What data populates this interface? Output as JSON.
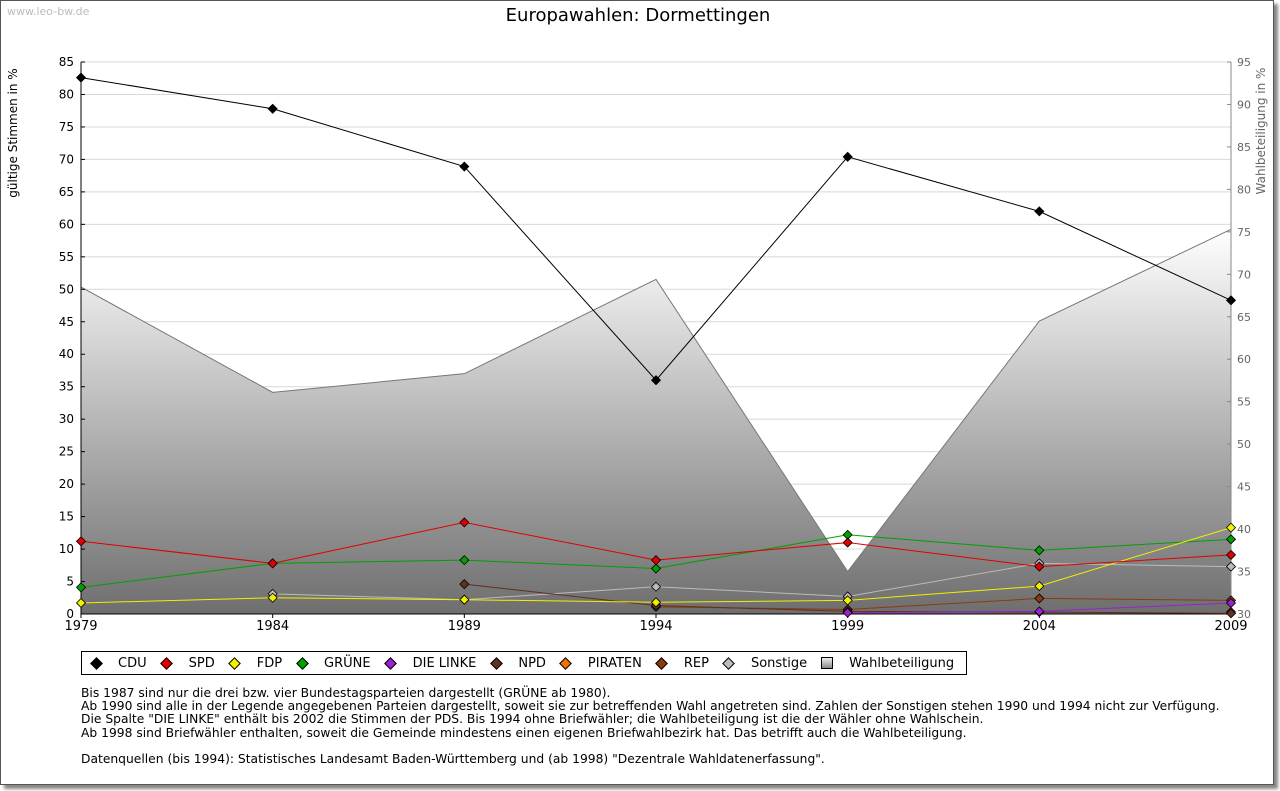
{
  "watermark": "www.leo-bw.de",
  "chart_data": {
    "type": "line",
    "title": "Europawahlen: Dormettingen",
    "ylabel": "gültige Stimmen in %",
    "y2label": "Wahlbeteiligung in %",
    "x": [
      "1979",
      "1984",
      "1989",
      "1994",
      "1999",
      "2004",
      "2009"
    ],
    "ylim": [
      0,
      85
    ],
    "y2lim": [
      30,
      95
    ],
    "yticks": [
      0,
      5,
      10,
      15,
      20,
      25,
      30,
      35,
      40,
      45,
      50,
      55,
      60,
      65,
      70,
      75,
      80,
      85
    ],
    "y2ticks": [
      30,
      35,
      40,
      45,
      50,
      55,
      60,
      65,
      70,
      75,
      80,
      85,
      90,
      95
    ],
    "grid": true,
    "series": [
      {
        "name": "CDU",
        "color": "#000000",
        "values": [
          82.6,
          77.8,
          68.9,
          36.0,
          70.4,
          62.0,
          48.3
        ]
      },
      {
        "name": "SPD",
        "color": "#e00000",
        "values": [
          11.2,
          7.8,
          14.1,
          8.3,
          11.0,
          7.3,
          9.1
        ]
      },
      {
        "name": "FDP",
        "color": "#f0f000",
        "values": [
          1.7,
          2.5,
          2.2,
          1.8,
          2.1,
          4.3,
          13.3
        ]
      },
      {
        "name": "GRÜNE",
        "color": "#00a000",
        "values": [
          4.1,
          7.8,
          8.3,
          7.0,
          12.2,
          9.8,
          11.5
        ]
      },
      {
        "name": "DIE LINKE",
        "color": "#9a20d0",
        "values": [
          null,
          null,
          null,
          null,
          0.2,
          0.4,
          1.7
        ]
      },
      {
        "name": "NPD",
        "color": "#603020",
        "values": [
          null,
          null,
          4.6,
          1.3,
          0.4,
          0.3,
          0.1
        ]
      },
      {
        "name": "PIRATEN",
        "color": "#f07000",
        "values": [
          null,
          null,
          null,
          null,
          null,
          null,
          0.3
        ]
      },
      {
        "name": "REP",
        "color": "#8b3a10",
        "values": [
          null,
          null,
          null,
          1.1,
          0.7,
          2.4,
          2.1
        ]
      },
      {
        "name": "Sonstige",
        "color": "#bbbbbb",
        "values": [
          null,
          3.1,
          2.2,
          4.2,
          2.7,
          7.8,
          7.3
        ]
      }
    ],
    "turnout": {
      "name": "Wahlbeteiligung",
      "values": [
        68.5,
        56.1,
        58.3,
        69.4,
        35.0,
        64.5,
        75.3
      ]
    },
    "legend": [
      "CDU",
      "SPD",
      "FDP",
      "GRÜNE",
      "DIE LINKE",
      "NPD",
      "PIRATEN",
      "REP",
      "Sonstige",
      "Wahlbeteiligung"
    ]
  },
  "notes": [
    "Bis 1987 sind nur die drei bzw. vier Bundestagsparteien dargestellt (GRÜNE ab 1980).",
    "Ab 1990 sind alle in der Legende angegebenen Parteien dargestellt, soweit sie zur betreffenden Wahl angetreten sind. Zahlen der Sonstigen stehen 1990 und 1994 nicht zur Verfügung.",
    "Die Spalte \"DIE LINKE\" enthält bis 2002 die Stimmen der PDS. Bis 1994 ohne Briefwähler; die Wahlbeteiligung ist die der Wähler ohne Wahlschein.",
    "Ab 1998 sind Briefwähler enthalten, soweit die Gemeinde mindestens einen eigenen Briefwahlbezirk hat. Das betrifft auch die Wahlbeteiligung."
  ],
  "source": "Datenquellen (bis 1994): Statistisches Landesamt Baden-Württemberg und (ab 1998) \"Dezentrale Wahldatenerfassung\"."
}
